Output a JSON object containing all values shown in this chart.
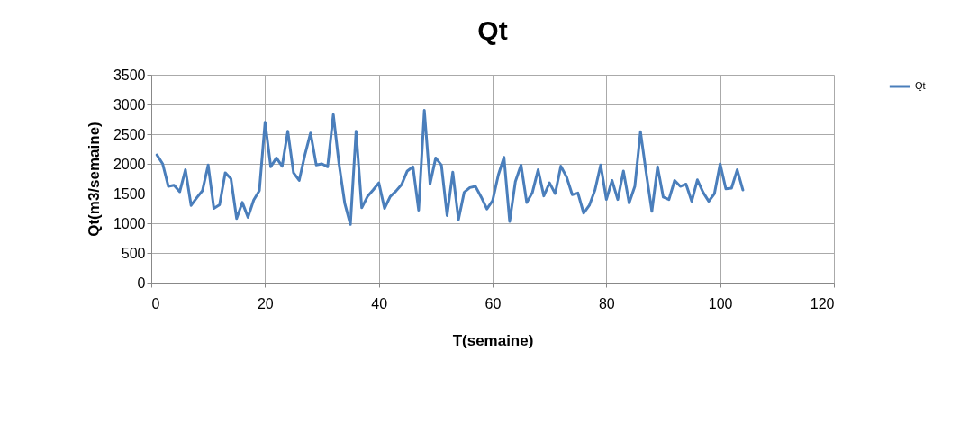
{
  "chart_data": {
    "type": "line",
    "title": "Qt",
    "xlabel": "T(semaine)",
    "ylabel": "Qt(m3/semaine)",
    "x": [
      1,
      2,
      3,
      4,
      5,
      6,
      7,
      8,
      9,
      10,
      11,
      12,
      13,
      14,
      15,
      16,
      17,
      18,
      19,
      20,
      21,
      22,
      23,
      24,
      25,
      26,
      27,
      28,
      29,
      30,
      31,
      32,
      33,
      34,
      35,
      36,
      37,
      38,
      39,
      40,
      41,
      42,
      43,
      44,
      45,
      46,
      47,
      48,
      49,
      50,
      51,
      52,
      53,
      54,
      55,
      56,
      57,
      58,
      59,
      60,
      61,
      62,
      63,
      64,
      65,
      66,
      67,
      68,
      69,
      70,
      71,
      72,
      73,
      74,
      75,
      76,
      77,
      78,
      79,
      80,
      81,
      82,
      83,
      84,
      85,
      86,
      87,
      88,
      89,
      90,
      91,
      92,
      93,
      94,
      95,
      96,
      97,
      98,
      99,
      100,
      101,
      102,
      103,
      104
    ],
    "series": [
      {
        "name": "Qt",
        "color": "#4a7ebb",
        "values": [
          2150,
          2000,
          1620,
          1640,
          1530,
          1900,
          1300,
          1430,
          1550,
          1980,
          1250,
          1310,
          1850,
          1750,
          1080,
          1350,
          1100,
          1390,
          1550,
          2700,
          1950,
          2100,
          1960,
          2550,
          1850,
          1720,
          2150,
          2520,
          1980,
          2000,
          1950,
          2830,
          2000,
          1340,
          980,
          2550,
          1260,
          1450,
          1560,
          1680,
          1250,
          1450,
          1540,
          1650,
          1880,
          1950,
          1220,
          2900,
          1660,
          2100,
          1980,
          1130,
          1860,
          1060,
          1520,
          1600,
          1620,
          1440,
          1240,
          1380,
          1810,
          2110,
          1030,
          1700,
          1980,
          1350,
          1520,
          1900,
          1460,
          1680,
          1500,
          1960,
          1780,
          1480,
          1510,
          1170,
          1300,
          1560,
          1980,
          1400,
          1720,
          1400,
          1880,
          1340,
          1620,
          2540,
          1850,
          1200,
          1950,
          1440,
          1400,
          1720,
          1620,
          1660,
          1370,
          1730,
          1520,
          1370,
          1500,
          2000,
          1580,
          1590,
          1900,
          1560
        ]
      }
    ],
    "xlim": [
      0,
      120
    ],
    "xticks": [
      0,
      20,
      40,
      60,
      80,
      100,
      120
    ],
    "ylim": [
      0,
      3500
    ],
    "yticks": [
      0,
      500,
      1000,
      1500,
      2000,
      2500,
      3000,
      3500
    ],
    "grid": true,
    "legend": "right",
    "marker": "none",
    "line_style": "solid"
  }
}
